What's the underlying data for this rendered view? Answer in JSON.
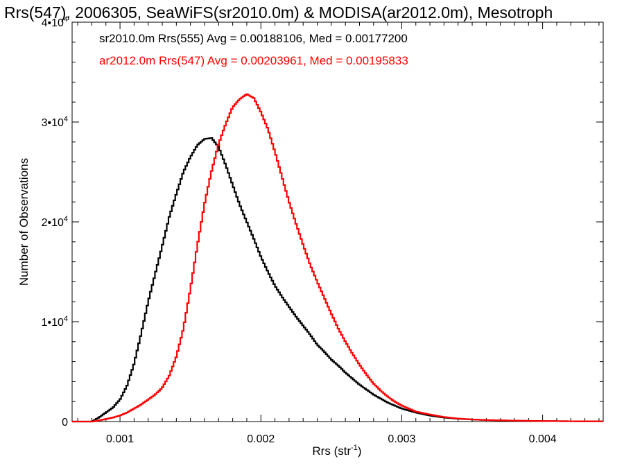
{
  "chart_data": {
    "type": "line",
    "title": "Rrs(547), 2006305, SeaWiFS(sr2010.0m) & MODISA(ar2012.0m), Mesotroph",
    "xlabel": "Rrs (str",
    "xlabel_superscript": "-1",
    "xlabel_suffix": ")",
    "ylabel": "Number of Observations",
    "xlim": [
      0.00066,
      0.00443
    ],
    "ylim": [
      0,
      40000
    ],
    "grid": false,
    "legend_placement": "top-left",
    "x_ticks": [
      {
        "value": 0.001,
        "label": "0.001"
      },
      {
        "value": 0.002,
        "label": "0.002"
      },
      {
        "value": 0.003,
        "label": "0.003"
      },
      {
        "value": 0.004,
        "label": "0.004"
      }
    ],
    "y_ticks": [
      {
        "value": 0,
        "base": "0",
        "exp": ""
      },
      {
        "value": 10000,
        "base": "1•10",
        "exp": "4"
      },
      {
        "value": 20000,
        "base": "2•10",
        "exp": "4"
      },
      {
        "value": 30000,
        "base": "3•10",
        "exp": "4"
      },
      {
        "value": 40000,
        "base": "4•10",
        "exp": "4"
      }
    ],
    "series": [
      {
        "name": "sr2010.0m Rrs(555) Avg = 0.00188106, Med = 0.00177200",
        "color": "#000000",
        "points": [
          [
            0.0008,
            0
          ],
          [
            0.00085,
            400
          ],
          [
            0.0009,
            900
          ],
          [
            0.00095,
            1400
          ],
          [
            0.001,
            2200
          ],
          [
            0.00105,
            3600
          ],
          [
            0.0011,
            5800
          ],
          [
            0.00115,
            8800
          ],
          [
            0.0012,
            12000
          ],
          [
            0.00125,
            14800
          ],
          [
            0.0013,
            17600
          ],
          [
            0.00135,
            20500
          ],
          [
            0.0014,
            22800
          ],
          [
            0.00145,
            25000
          ],
          [
            0.0015,
            26500
          ],
          [
            0.00155,
            27700
          ],
          [
            0.0016,
            28300
          ],
          [
            0.00165,
            28400
          ],
          [
            0.0017,
            27500
          ],
          [
            0.00175,
            25700
          ],
          [
            0.0018,
            23700
          ],
          [
            0.00185,
            21700
          ],
          [
            0.0019,
            20000
          ],
          [
            0.00195,
            18300
          ],
          [
            0.002,
            16500
          ],
          [
            0.00205,
            15000
          ],
          [
            0.0021,
            13600
          ],
          [
            0.00215,
            12500
          ],
          [
            0.0022,
            11500
          ],
          [
            0.00225,
            10500
          ],
          [
            0.0023,
            9600
          ],
          [
            0.00235,
            8700
          ],
          [
            0.0024,
            7700
          ],
          [
            0.00245,
            7000
          ],
          [
            0.0025,
            6200
          ],
          [
            0.00255,
            5600
          ],
          [
            0.0026,
            4900
          ],
          [
            0.00265,
            4300
          ],
          [
            0.0027,
            3700
          ],
          [
            0.00275,
            3200
          ],
          [
            0.0028,
            2700
          ],
          [
            0.00285,
            2300
          ],
          [
            0.0029,
            1900
          ],
          [
            0.00295,
            1600
          ],
          [
            0.003,
            1300
          ],
          [
            0.0031,
            900
          ],
          [
            0.0032,
            600
          ],
          [
            0.0033,
            400
          ],
          [
            0.0034,
            280
          ],
          [
            0.0035,
            200
          ],
          [
            0.0036,
            150
          ],
          [
            0.0038,
            90
          ],
          [
            0.004,
            50
          ],
          [
            0.0042,
            30
          ],
          [
            0.00443,
            20
          ]
        ]
      },
      {
        "name": "ar2012.0m Rrs(547) Avg = 0.00203961, Med = 0.00195833",
        "color": "#ff0000",
        "points": [
          [
            0.0008,
            0
          ],
          [
            0.00085,
            100
          ],
          [
            0.0009,
            250
          ],
          [
            0.00095,
            400
          ],
          [
            0.001,
            600
          ],
          [
            0.00105,
            900
          ],
          [
            0.0011,
            1300
          ],
          [
            0.00115,
            1700
          ],
          [
            0.0012,
            2200
          ],
          [
            0.00125,
            2700
          ],
          [
            0.0013,
            3400
          ],
          [
            0.00135,
            4600
          ],
          [
            0.0014,
            6500
          ],
          [
            0.00145,
            9300
          ],
          [
            0.0015,
            13300
          ],
          [
            0.00155,
            17700
          ],
          [
            0.0016,
            21800
          ],
          [
            0.00165,
            25100
          ],
          [
            0.0017,
            27800
          ],
          [
            0.00175,
            29800
          ],
          [
            0.0018,
            31500
          ],
          [
            0.00185,
            32300
          ],
          [
            0.0019,
            32800
          ],
          [
            0.00195,
            32400
          ],
          [
            0.002,
            31000
          ],
          [
            0.00205,
            29300
          ],
          [
            0.0021,
            27000
          ],
          [
            0.00215,
            24500
          ],
          [
            0.0022,
            22000
          ],
          [
            0.00225,
            19800
          ],
          [
            0.0023,
            17700
          ],
          [
            0.00235,
            15700
          ],
          [
            0.0024,
            14000
          ],
          [
            0.00245,
            12400
          ],
          [
            0.0025,
            10800
          ],
          [
            0.00255,
            9300
          ],
          [
            0.0026,
            8000
          ],
          [
            0.00265,
            6800
          ],
          [
            0.0027,
            5700
          ],
          [
            0.00275,
            4700
          ],
          [
            0.0028,
            3800
          ],
          [
            0.00285,
            3100
          ],
          [
            0.0029,
            2500
          ],
          [
            0.00295,
            2000
          ],
          [
            0.003,
            1600
          ],
          [
            0.0031,
            1000
          ],
          [
            0.0032,
            700
          ],
          [
            0.0033,
            450
          ],
          [
            0.0034,
            300
          ],
          [
            0.0035,
            210
          ],
          [
            0.0036,
            150
          ],
          [
            0.0038,
            90
          ],
          [
            0.004,
            50
          ],
          [
            0.0042,
            30
          ],
          [
            0.00443,
            20
          ]
        ]
      }
    ]
  }
}
